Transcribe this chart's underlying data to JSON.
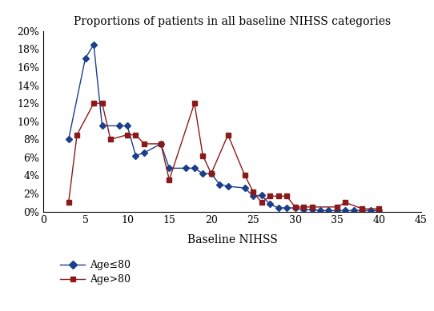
{
  "title": "Proportions of patients in all baseline NIHSS categories",
  "xlabel": "Baseline NIHSS",
  "blue_x": [
    3,
    5,
    6,
    7,
    9,
    10,
    11,
    12,
    14,
    15,
    17,
    18,
    19,
    20,
    21,
    22,
    24,
    25,
    26,
    27,
    28,
    29,
    30,
    31,
    32,
    33,
    34,
    35,
    36,
    37,
    38,
    39,
    40
  ],
  "blue_y": [
    0.08,
    0.17,
    0.185,
    0.095,
    0.095,
    0.095,
    0.062,
    0.065,
    0.075,
    0.048,
    0.048,
    0.048,
    0.042,
    0.042,
    0.03,
    0.028,
    0.026,
    0.017,
    0.018,
    0.008,
    0.004,
    0.004,
    0.004,
    0.002,
    0.002,
    0.001,
    0.001,
    0.001,
    0.001,
    0.001,
    0.001,
    0.001,
    0.001
  ],
  "red_x": [
    3,
    4,
    6,
    7,
    8,
    10,
    11,
    12,
    14,
    15,
    18,
    19,
    20,
    22,
    24,
    25,
    26,
    27,
    28,
    29,
    30,
    31,
    32,
    35,
    36,
    38,
    40
  ],
  "red_y": [
    0.01,
    0.085,
    0.12,
    0.12,
    0.08,
    0.085,
    0.085,
    0.075,
    0.075,
    0.035,
    0.12,
    0.062,
    0.042,
    0.085,
    0.04,
    0.022,
    0.01,
    0.017,
    0.017,
    0.017,
    0.005,
    0.005,
    0.005,
    0.005,
    0.01,
    0.003,
    0.003
  ],
  "blue_color": "#1c3f8c",
  "red_color": "#8b1a1a",
  "xlim": [
    0,
    45
  ],
  "ylim": [
    0,
    0.2
  ],
  "yticks": [
    0.0,
    0.02,
    0.04,
    0.06,
    0.08,
    0.1,
    0.12,
    0.14,
    0.16,
    0.18,
    0.2
  ],
  "xticks": [
    0,
    5,
    10,
    15,
    20,
    25,
    30,
    35,
    40,
    45
  ],
  "legend_blue": "Age≤80",
  "legend_red": "Age>80",
  "title_fontsize": 10,
  "axis_fontsize": 9,
  "legend_fontsize": 9
}
